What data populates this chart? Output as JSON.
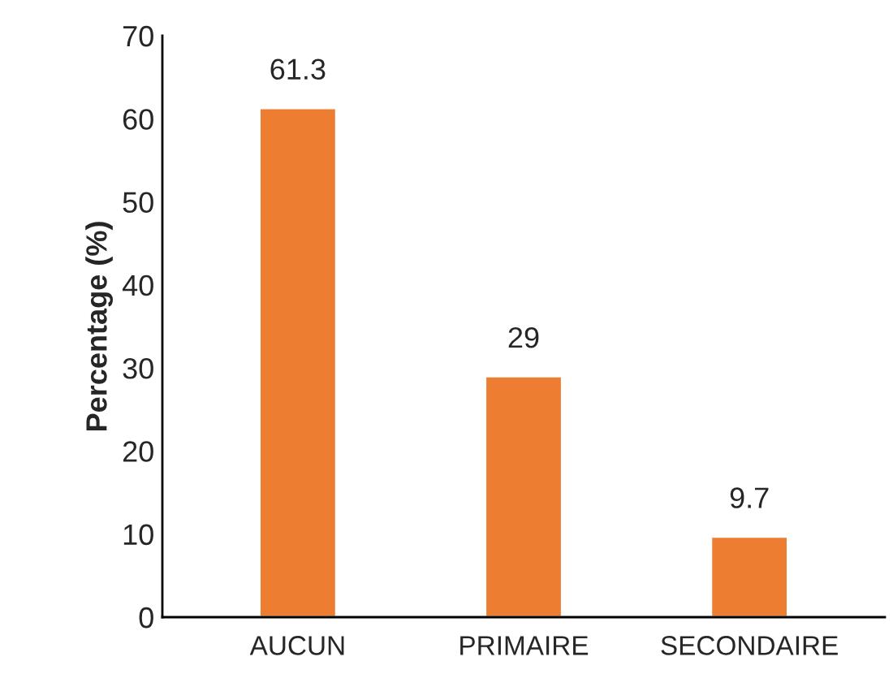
{
  "chart_data": {
    "type": "bar",
    "ylabel": "Percentage (%)",
    "categories": [
      "AUCUN",
      "PRIMAIRE",
      "SECONDAIRE"
    ],
    "values": [
      61.3,
      29,
      9.7
    ],
    "color": "#ed7d31",
    "ylim": [
      0,
      70
    ],
    "yticks": [
      0,
      10,
      20,
      30,
      40,
      50,
      60,
      70
    ],
    "grid": false,
    "data_labels": true
  }
}
